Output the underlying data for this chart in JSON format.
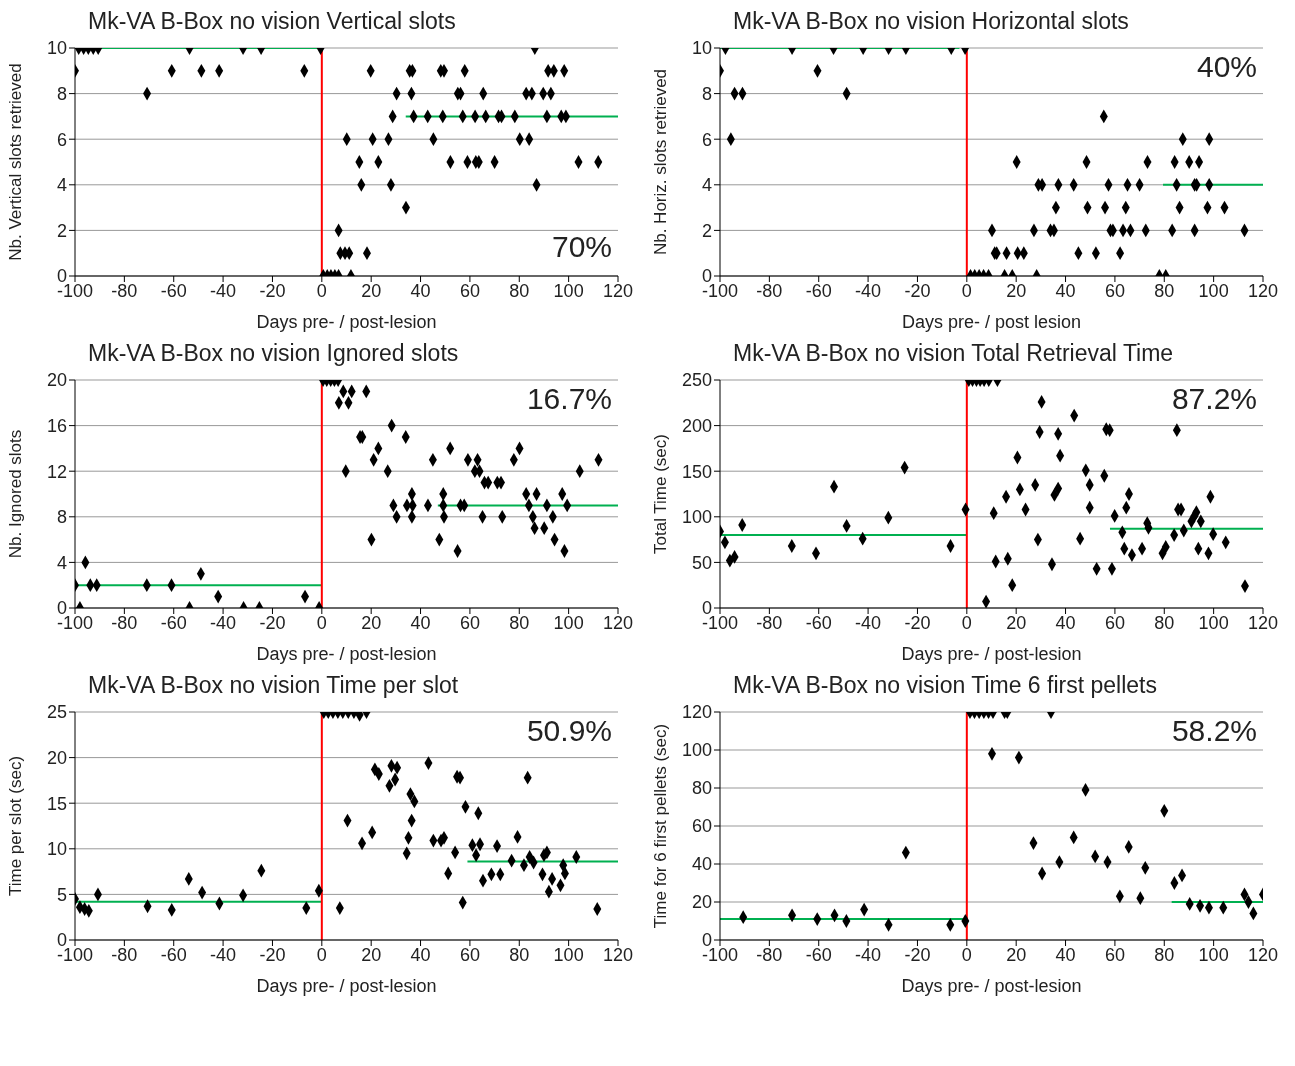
{
  "chart_data": [
    {
      "type": "scatter",
      "title": "Mk-VA B-Box no vision Vertical slots",
      "xlabel": "Days pre- / post-lesion",
      "ylabel": "Nb. Vertical slots retrieved",
      "xlim": [
        -100,
        120
      ],
      "xticks": [
        -100,
        -80,
        -60,
        -40,
        -20,
        0,
        20,
        40,
        60,
        80,
        100,
        120
      ],
      "ylim": [
        0,
        10
      ],
      "yticks": [
        0,
        2,
        4,
        6,
        8,
        10
      ],
      "grid": "y",
      "marker": "diamond",
      "annotations": [
        "70%"
      ],
      "ref_lines": [
        {
          "axis": "x",
          "value": 0,
          "color": "#ff0000"
        }
      ],
      "series": [
        {
          "type": "scatter",
          "color": "#000000",
          "x": [
            -100,
            -98.5,
            -96.5,
            -94.6,
            -92.6,
            -90.6,
            -70.8,
            -60.8,
            -53.6,
            -48.8,
            -41.6,
            -31.9,
            -24.6,
            -7.1,
            -0.5,
            0.6,
            2.2,
            3.7,
            5.3,
            6.8,
            11.8,
            6.8,
            7.5,
            9.4,
            11.1,
            18.3,
            10.1,
            15.2,
            16,
            19.8,
            20.6,
            22.9,
            27,
            28,
            28.7,
            30.3,
            34.1,
            35.6,
            36.7,
            36.3,
            37.2,
            42.9,
            45.2,
            48.2,
            49.5,
            49,
            52.1,
            55.1,
            56.2,
            57.1,
            57.9,
            59,
            62.1,
            62.4,
            63.6,
            65.4,
            66.4,
            70,
            71.6,
            72.8,
            78.2,
            80.2,
            82.8,
            84,
            85.1,
            86.3,
            87,
            89.7,
            91.2,
            91.7,
            92.8,
            94,
            97,
            98.9,
            98.2,
            104,
            112
          ],
          "values": [
            9,
            10,
            10,
            10,
            10,
            10,
            8,
            9,
            10,
            9,
            9,
            10,
            10,
            9,
            10,
            0,
            0,
            0,
            0,
            0,
            0,
            2,
            1,
            1,
            1,
            1,
            6,
            5,
            4,
            9,
            6,
            5,
            6,
            4,
            7,
            8,
            3,
            9,
            9,
            8,
            7,
            7,
            6,
            9,
            9,
            7,
            5,
            8,
            8,
            7,
            9,
            5,
            7,
            5,
            5,
            8,
            7,
            5,
            7,
            7,
            7,
            6,
            8,
            6,
            8,
            10,
            4,
            8,
            7,
            9,
            8,
            9,
            7,
            7,
            9,
            5,
            5
          ]
        },
        {
          "type": "line",
          "color": "#00b050",
          "x": [
            -100,
            0
          ],
          "values": [
            10,
            10
          ],
          "marker": "none"
        },
        {
          "type": "line",
          "color": "#00b050",
          "x": [
            34,
            120
          ],
          "values": [
            7,
            7
          ],
          "marker": "none"
        }
      ]
    },
    {
      "type": "scatter",
      "title": "Mk-VA B-Box no vision Horizontal slots",
      "xlabel": "Days pre- / post lesion",
      "ylabel": "Nb. Horiz. slots retrieved",
      "xlim": [
        -100,
        120
      ],
      "xticks": [
        -100,
        -80,
        -60,
        -40,
        -20,
        0,
        20,
        40,
        60,
        80,
        100,
        120
      ],
      "ylim": [
        0,
        10
      ],
      "yticks": [
        0,
        2,
        4,
        6,
        8,
        10
      ],
      "grid": "y",
      "marker": "diamond",
      "annotations": [
        "40%"
      ],
      "ref_lines": [
        {
          "axis": "x",
          "value": 0,
          "color": "#ff0000"
        }
      ],
      "series": [
        {
          "type": "scatter",
          "color": "#000000",
          "x": [
            -100,
            -97.8,
            -95.6,
            -94.1,
            -90.9,
            -70.8,
            -60.5,
            -54,
            -48.7,
            -42,
            -31.7,
            -24.7,
            -6.3,
            -0.7,
            1.5,
            3.2,
            5,
            6.8,
            8.8,
            15.3,
            18.4,
            28.3,
            78,
            80.6,
            10.2,
            11.3,
            12.1,
            16.1,
            20.6,
            23.1,
            20.2,
            27.2,
            29,
            30.5,
            33.9,
            35.3,
            36.1,
            37.1,
            43.3,
            45.2,
            48.5,
            48.9,
            52.3,
            55.5,
            56,
            57.4,
            58.2,
            59.2,
            62.1,
            63.3,
            64.4,
            65.1,
            66.3,
            70,
            72.5,
            73.2,
            83.2,
            84.2,
            85,
            86.2,
            87.5,
            90.1,
            92.3,
            93.1,
            92.3,
            94.1,
            97.5,
            98.2,
            98.2,
            104.4,
            112.5
          ],
          "values": [
            9,
            10,
            6,
            8,
            8,
            10,
            9,
            10,
            8,
            10,
            10,
            10,
            10,
            10,
            0,
            0,
            0,
            0,
            0,
            0,
            0,
            0,
            0,
            0,
            2,
            1,
            1,
            1,
            1,
            1,
            5,
            2,
            4,
            4,
            2,
            2,
            3,
            4,
            4,
            1,
            5,
            3,
            1,
            7,
            3,
            4,
            2,
            2,
            1,
            2,
            3,
            4,
            2,
            4,
            2,
            5,
            2,
            5,
            4,
            3,
            6,
            5,
            4,
            4,
            2,
            5,
            3,
            6,
            4,
            3,
            2
          ]
        },
        {
          "type": "line",
          "color": "#00b050",
          "x": [
            -100,
            -3
          ],
          "values": [
            10,
            10
          ],
          "marker": "none"
        },
        {
          "type": "line",
          "color": "#00b050",
          "x": [
            79.5,
            120
          ],
          "values": [
            4,
            4
          ],
          "marker": "none"
        }
      ]
    },
    {
      "type": "scatter",
      "title": "Mk-VA B-Box no vision Ignored slots",
      "xlabel": "Days pre- / post-lesion",
      "ylabel": "Nb. Ignored slots",
      "xlim": [
        -100,
        120
      ],
      "xticks": [
        -100,
        -80,
        -60,
        -40,
        -20,
        0,
        20,
        40,
        60,
        80,
        100,
        120
      ],
      "ylim": [
        0,
        20
      ],
      "yticks": [
        0,
        4,
        8,
        12,
        16,
        20
      ],
      "grid": "y",
      "marker": "diamond",
      "annotations": [
        "16.7%"
      ],
      "ref_lines": [
        {
          "axis": "x",
          "value": 0,
          "color": "#ff0000"
        }
      ],
      "series": [
        {
          "type": "scatter",
          "color": "#000000",
          "x": [
            -100,
            -98,
            -95.8,
            -93.8,
            -91.2,
            -70.9,
            -60.9,
            -53.6,
            -49,
            -42,
            -31.7,
            -25.3,
            -6.8,
            -1.1,
            0.5,
            2,
            3.6,
            5.1,
            6.6,
            8.7,
            12.1,
            6.9,
            10.8,
            9.7,
            15.5,
            16.4,
            18,
            20.1,
            21,
            22.9,
            26.7,
            28.3,
            29,
            30.3,
            34,
            34.5,
            36.5,
            36.8,
            36.5,
            43,
            45,
            47.6,
            49.2,
            49.2,
            49.5,
            52,
            55,
            56.2,
            57.7,
            59.2,
            63.1,
            62,
            63.9,
            65.9,
            67.4,
            65.1,
            71.1,
            72.6,
            73.1,
            77.8,
            80.1,
            82.8,
            83.9,
            85.5,
            86.2,
            87,
            90.1,
            91.2,
            93.6,
            94.3,
            97.4,
            98.3,
            99.4,
            104.5,
            112.1
          ],
          "values": [
            2,
            0,
            4,
            2,
            2,
            2,
            2,
            0,
            3,
            1,
            0,
            0,
            1,
            0,
            20,
            20,
            20,
            20,
            20,
            19,
            19,
            18,
            18,
            12,
            15,
            15,
            19,
            6,
            13,
            14,
            12,
            16,
            9,
            8,
            15,
            9,
            10,
            9,
            8,
            9,
            13,
            6,
            9,
            10,
            8,
            14,
            5,
            9,
            9,
            13,
            13,
            12,
            12,
            11,
            11,
            8,
            11,
            11,
            8,
            13,
            14,
            10,
            9,
            8,
            7,
            10,
            7,
            9,
            8,
            6,
            10,
            5,
            9,
            12,
            13
          ]
        },
        {
          "type": "line",
          "color": "#00b050",
          "x": [
            -100,
            0
          ],
          "values": [
            2,
            2
          ],
          "marker": "none"
        },
        {
          "type": "line",
          "color": "#00b050",
          "x": [
            47,
            120
          ],
          "values": [
            9,
            9
          ],
          "marker": "none"
        }
      ]
    },
    {
      "type": "scatter",
      "title": "Mk-VA B-Box no vision Total Retrieval Time",
      "xlabel": "Days pre- / post-lesion",
      "ylabel": "Total Time (sec)",
      "xlim": [
        -100,
        120
      ],
      "xticks": [
        -100,
        -80,
        -60,
        -40,
        -20,
        0,
        20,
        40,
        60,
        80,
        100,
        120
      ],
      "ylim": [
        0,
        250
      ],
      "yticks": [
        0,
        50,
        100,
        150,
        200,
        250
      ],
      "grid": "y",
      "marker": "diamond",
      "annotations": [
        "87.2%"
      ],
      "ref_lines": [
        {
          "axis": "x",
          "value": 0,
          "color": "#ff0000"
        }
      ],
      "series": [
        {
          "type": "scatter",
          "color": "#000000",
          "x": [
            -100,
            -98,
            -96,
            -94.1,
            -91,
            -70.9,
            -61.1,
            -53.8,
            -48.7,
            -42.2,
            -31.8,
            -25.2,
            -6.6,
            -0.5,
            0.8,
            2.3,
            3.9,
            5.4,
            7,
            8.9,
            12.4,
            7.8,
            10.9,
            11.7,
            15.9,
            16.6,
            18.4,
            20.5,
            21.5,
            23.8,
            27.7,
            28.8,
            29.5,
            30.3,
            34.5,
            35.5,
            37,
            37,
            37.8,
            43.5,
            45.9,
            48.2,
            49.8,
            49.8,
            52.6,
            55.7,
            56.5,
            57.9,
            58.8,
            59.9,
            63,
            63.8,
            64.6,
            65.7,
            66.9,
            71,
            73.1,
            73.6,
            79.3,
            80.6,
            84,
            85.1,
            85.6,
            86.8,
            87.9,
            91,
            92.2,
            93,
            93.8,
            94.8,
            97.9,
            98.7,
            99.8,
            104.9,
            112.7
          ],
          "values": [
            84,
            72,
            52,
            56,
            91,
            68,
            60,
            133,
            90,
            76,
            99,
            154,
            68,
            108,
            250,
            250,
            250,
            250,
            250,
            250,
            250,
            7,
            104,
            51,
            122,
            54,
            25,
            165,
            130,
            108,
            135,
            75,
            193,
            226,
            48,
            124,
            191,
            131,
            167,
            211,
            76,
            151,
            135,
            110,
            43,
            145,
            196,
            195,
            43,
            101,
            83,
            65,
            110,
            125,
            58,
            65,
            93,
            88,
            60,
            67,
            80,
            195,
            108,
            108,
            85,
            95,
            101,
            105,
            65,
            95,
            60,
            122,
            81,
            72,
            24
          ]
        },
        {
          "type": "line",
          "color": "#00b050",
          "x": [
            -100,
            0
          ],
          "values": [
            80,
            80
          ],
          "marker": "none"
        },
        {
          "type": "line",
          "color": "#00b050",
          "x": [
            58,
            120
          ],
          "values": [
            87,
            87
          ],
          "marker": "none"
        }
      ]
    },
    {
      "type": "scatter",
      "title": "Mk-VA B-Box no vision Time per slot",
      "xlabel": "Days pre- / post-lesion",
      "ylabel": "Time per slot (sec)",
      "xlim": [
        -100,
        120
      ],
      "xticks": [
        -100,
        -80,
        -60,
        -40,
        -20,
        0,
        20,
        40,
        60,
        80,
        100,
        120
      ],
      "ylim": [
        0,
        25
      ],
      "yticks": [
        0,
        5,
        10,
        15,
        20,
        25
      ],
      "grid": "y",
      "marker": "diamond",
      "annotations": [
        "50.9%"
      ],
      "ref_lines": [
        {
          "axis": "x",
          "value": 0,
          "color": "#ff0000"
        }
      ],
      "series": [
        {
          "type": "scatter",
          "color": "#000000",
          "x": [
            -100,
            -98,
            -96.1,
            -94.4,
            -90.7,
            -70.6,
            -60.8,
            -53.9,
            -48.5,
            -41.5,
            -31.9,
            -24.5,
            -6.3,
            -1.2,
            0.8,
            2.6,
            4.5,
            6.5,
            8.5,
            10.7,
            13,
            15.3,
            18.1,
            7.3,
            10.4,
            16.3,
            20.4,
            21.5,
            23.1,
            27.4,
            29.7,
            28.2,
            30.5,
            34.4,
            35.1,
            35.9,
            36.4,
            37.5,
            43.2,
            45.2,
            48.3,
            49.5,
            51.2,
            54,
            54.8,
            56,
            57.1,
            58.2,
            61,
            62.5,
            64.1,
            63.4,
            65.3,
            68.7,
            71,
            72.3,
            76.9,
            79.3,
            81.9,
            83.4,
            84.2,
            85.8,
            89.4,
            90,
            91.2,
            92,
            93.3,
            96.7,
            97.8,
            98.5,
            103.1,
            111.6
          ],
          "values": [
            4.5,
            3.6,
            3.4,
            3.2,
            5,
            3.7,
            3.3,
            6.7,
            5.2,
            4,
            4.9,
            7.6,
            3.5,
            5.4,
            25,
            25,
            25,
            25,
            25,
            25,
            25,
            24.7,
            25,
            3.5,
            13.1,
            10.6,
            11.8,
            18.7,
            18.2,
            16.9,
            17.6,
            19.1,
            18.9,
            9.5,
            11.2,
            16,
            13.1,
            15.2,
            19.4,
            10.9,
            10.9,
            11.2,
            7.3,
            9.6,
            17.9,
            17.8,
            4.1,
            14.6,
            10.4,
            9.3,
            10.5,
            13.9,
            6.5,
            7.2,
            10.3,
            7.2,
            8.7,
            11.3,
            8.2,
            17.8,
            9.1,
            8.5,
            7.2,
            9.3,
            9.6,
            5.3,
            6.7,
            6,
            8.2,
            7.3,
            9.1,
            3.4
          ]
        },
        {
          "type": "line",
          "color": "#00b050",
          "x": [
            -100,
            0
          ],
          "values": [
            4.2,
            4.2
          ],
          "marker": "none"
        },
        {
          "type": "line",
          "color": "#00b050",
          "x": [
            59,
            120
          ],
          "values": [
            8.6,
            8.6
          ],
          "marker": "none"
        }
      ]
    },
    {
      "type": "scatter",
      "title": "Mk-VA B-Box no vision Time 6 first pellets",
      "xlabel": "Days pre- / post-lesion",
      "ylabel": "Time for 6 first pellets (sec)",
      "xlim": [
        -100,
        120
      ],
      "xticks": [
        -100,
        -80,
        -60,
        -40,
        -20,
        0,
        20,
        40,
        60,
        80,
        100,
        120
      ],
      "ylim": [
        0,
        120
      ],
      "yticks": [
        0,
        20,
        40,
        60,
        80,
        100,
        120
      ],
      "grid": "y",
      "marker": "diamond",
      "annotations": [
        "58.2%"
      ],
      "ref_lines": [
        {
          "axis": "x",
          "value": 0,
          "color": "#ff0000"
        }
      ],
      "series": [
        {
          "type": "scatter",
          "color": "#000000",
          "x": [
            -90.6,
            -70.8,
            -60.6,
            -53.6,
            -48.8,
            -41.6,
            -31.7,
            -24.7,
            -6.7,
            -0.6,
            1.3,
            3.1,
            5,
            6.9,
            8.8,
            10.6,
            15.3,
            16.4,
            34.1,
            10.2,
            21.1,
            27,
            30.5,
            37.5,
            43.3,
            48.1,
            52,
            57,
            62,
            65.6,
            70.3,
            72.3,
            80,
            84.1,
            87.2,
            90.3,
            94.5,
            98.1,
            103.9,
            112.5,
            114.1,
            116.1,
            120
          ],
          "values": [
            12,
            13,
            11,
            13,
            10,
            16,
            8,
            46,
            8,
            10,
            120,
            120,
            120,
            120,
            120,
            120,
            120,
            120,
            120,
            98,
            96,
            51,
            35,
            41,
            54,
            79,
            44,
            41,
            23,
            49,
            22,
            38,
            68,
            30,
            34,
            19,
            18,
            17,
            17,
            24,
            20,
            14,
            24
          ]
        },
        {
          "type": "line",
          "color": "#00b050",
          "x": [
            -100,
            0
          ],
          "values": [
            11,
            11
          ],
          "marker": "none"
        },
        {
          "type": "line",
          "color": "#00b050",
          "x": [
            83,
            120
          ],
          "values": [
            20,
            20
          ],
          "marker": "none"
        }
      ]
    }
  ]
}
